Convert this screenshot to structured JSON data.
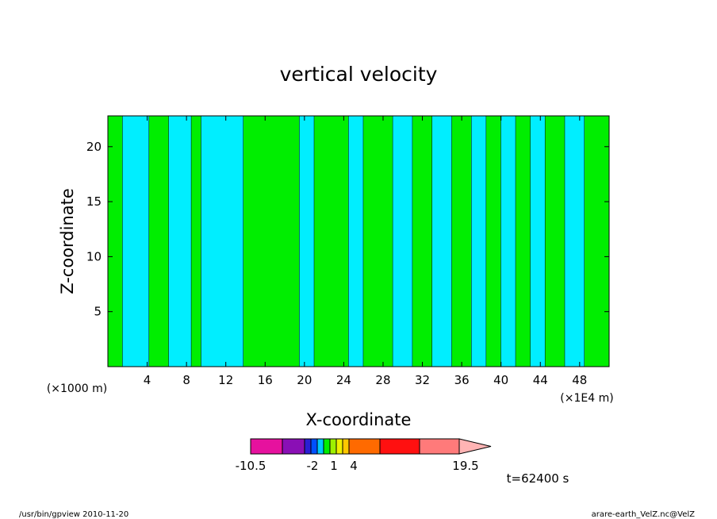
{
  "chart_data": {
    "type": "heatmap",
    "title": "vertical velocity",
    "xlabel": "X-coordinate",
    "ylabel": "Z-coordinate",
    "x_unit_left": "(×1000 m)",
    "x_unit_right": "(×1E4 m)",
    "xlim": [
      0,
      51
    ],
    "ylim": [
      0,
      22.8
    ],
    "x_ticks": [
      4,
      8,
      12,
      16,
      20,
      24,
      28,
      32,
      36,
      40,
      44,
      48
    ],
    "y_ticks": [
      5,
      10,
      15,
      20
    ],
    "field_colors": {
      "negative": "#00eeff",
      "positive": "#00ee00"
    },
    "regions": [
      {
        "x0": 0.0,
        "x1": 1.5,
        "sign": "positive"
      },
      {
        "x0": 1.5,
        "x1": 4.2,
        "sign": "negative"
      },
      {
        "x0": 4.2,
        "x1": 6.2,
        "sign": "positive"
      },
      {
        "x0": 6.2,
        "x1": 8.5,
        "sign": "negative"
      },
      {
        "x0": 8.5,
        "x1": 9.5,
        "sign": "positive"
      },
      {
        "x0": 9.5,
        "x1": 13.8,
        "sign": "negative"
      },
      {
        "x0": 13.8,
        "x1": 19.5,
        "sign": "positive"
      },
      {
        "x0": 19.5,
        "x1": 21.0,
        "sign": "negative"
      },
      {
        "x0": 21.0,
        "x1": 24.5,
        "sign": "positive"
      },
      {
        "x0": 24.5,
        "x1": 26.0,
        "sign": "negative"
      },
      {
        "x0": 26.0,
        "x1": 29.0,
        "sign": "positive"
      },
      {
        "x0": 29.0,
        "x1": 31.0,
        "sign": "negative"
      },
      {
        "x0": 31.0,
        "x1": 33.0,
        "sign": "positive"
      },
      {
        "x0": 33.0,
        "x1": 35.0,
        "sign": "negative"
      },
      {
        "x0": 35.0,
        "x1": 37.0,
        "sign": "positive"
      },
      {
        "x0": 37.0,
        "x1": 38.5,
        "sign": "negative"
      },
      {
        "x0": 38.5,
        "x1": 40.0,
        "sign": "positive"
      },
      {
        "x0": 40.0,
        "x1": 41.5,
        "sign": "negative"
      },
      {
        "x0": 41.5,
        "x1": 43.0,
        "sign": "positive"
      },
      {
        "x0": 43.0,
        "x1": 44.5,
        "sign": "negative"
      },
      {
        "x0": 44.5,
        "x1": 46.5,
        "sign": "positive"
      },
      {
        "x0": 46.5,
        "x1": 48.5,
        "sign": "negative"
      },
      {
        "x0": 48.5,
        "x1": 51.0,
        "sign": "positive"
      }
    ],
    "colorbar": {
      "colors": [
        "#e6119e",
        "#8a0fb5",
        "#2a1fd4",
        "#0050ff",
        "#00c8ff",
        "#00ee00",
        "#9ef000",
        "#f0f000",
        "#ffc800",
        "#ff6a00",
        "#ff1010",
        "#ff7a7a",
        "#ffb4b4"
      ],
      "labels": [
        "-10.5",
        "-2",
        "1",
        "4",
        "19.5"
      ]
    },
    "time_label": "t=62400 s"
  },
  "footer": {
    "left": "/usr/bin/gpview   2010-11-20",
    "right": "arare-earth_VelZ.nc@VelZ"
  }
}
